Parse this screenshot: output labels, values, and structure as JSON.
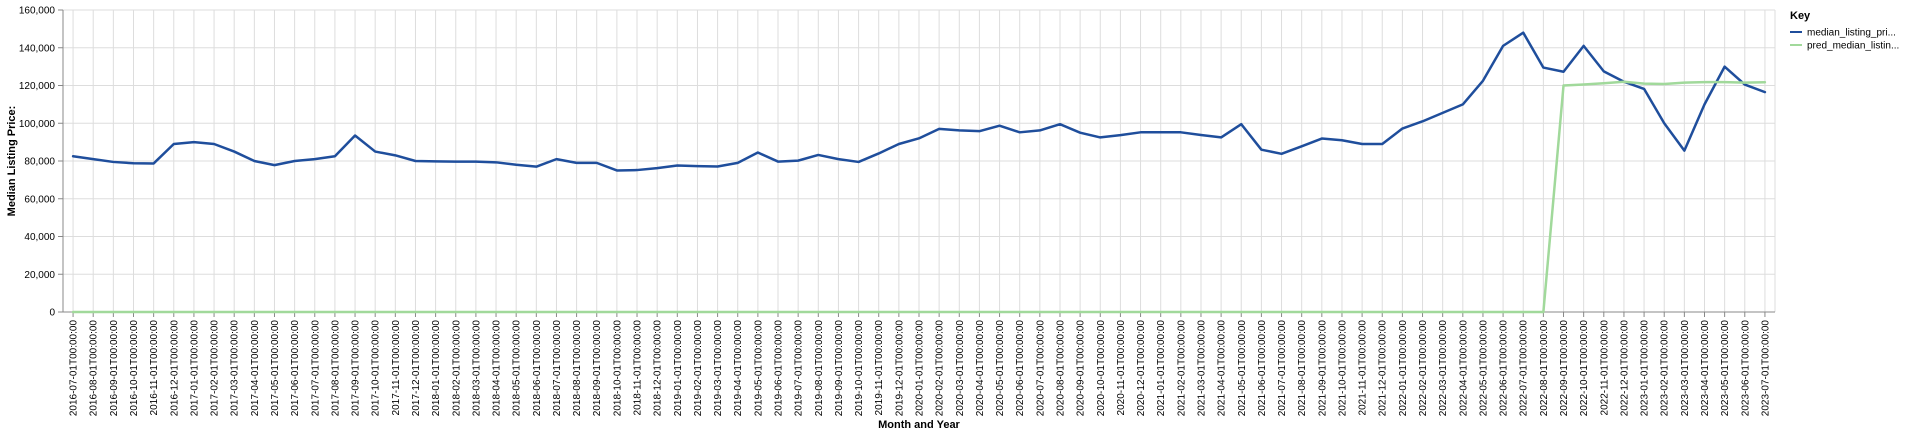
{
  "chart_data": {
    "type": "line",
    "xlabel": "Month and Year",
    "ylabel": "Median Listing Price:",
    "ylim": [
      0,
      160000
    ],
    "yticks": [
      "0",
      "20,000",
      "40,000",
      "60,000",
      "80,000",
      "100,000",
      "120,000",
      "140,000",
      "160,000"
    ],
    "grid": true,
    "legend": {
      "title": "Key",
      "placement": "top-right"
    },
    "categories": [
      "2016-07-01T00:00:00",
      "2016-08-01T00:00:00",
      "2016-09-01T00:00:00",
      "2016-10-01T00:00:00",
      "2016-11-01T00:00:00",
      "2016-12-01T00:00:00",
      "2017-01-01T00:00:00",
      "2017-02-01T00:00:00",
      "2017-03-01T00:00:00",
      "2017-04-01T00:00:00",
      "2017-05-01T00:00:00",
      "2017-06-01T00:00:00",
      "2017-07-01T00:00:00",
      "2017-08-01T00:00:00",
      "2017-09-01T00:00:00",
      "2017-10-01T00:00:00",
      "2017-11-01T00:00:00",
      "2017-12-01T00:00:00",
      "2018-01-01T00:00:00",
      "2018-02-01T00:00:00",
      "2018-03-01T00:00:00",
      "2018-04-01T00:00:00",
      "2018-05-01T00:00:00",
      "2018-06-01T00:00:00",
      "2018-07-01T00:00:00",
      "2018-08-01T00:00:00",
      "2018-09-01T00:00:00",
      "2018-10-01T00:00:00",
      "2018-11-01T00:00:00",
      "2018-12-01T00:00:00",
      "2019-01-01T00:00:00",
      "2019-02-01T00:00:00",
      "2019-03-01T00:00:00",
      "2019-04-01T00:00:00",
      "2019-05-01T00:00:00",
      "2019-06-01T00:00:00",
      "2019-07-01T00:00:00",
      "2019-08-01T00:00:00",
      "2019-09-01T00:00:00",
      "2019-10-01T00:00:00",
      "2019-11-01T00:00:00",
      "2019-12-01T00:00:00",
      "2020-01-01T00:00:00",
      "2020-02-01T00:00:00",
      "2020-03-01T00:00:00",
      "2020-04-01T00:00:00",
      "2020-05-01T00:00:00",
      "2020-06-01T00:00:00",
      "2020-07-01T00:00:00",
      "2020-08-01T00:00:00",
      "2020-09-01T00:00:00",
      "2020-10-01T00:00:00",
      "2020-11-01T00:00:00",
      "2020-12-01T00:00:00",
      "2021-01-01T00:00:00",
      "2021-02-01T00:00:00",
      "2021-03-01T00:00:00",
      "2021-04-01T00:00:00",
      "2021-05-01T00:00:00",
      "2021-06-01T00:00:00",
      "2021-07-01T00:00:00",
      "2021-08-01T00:00:00",
      "2021-09-01T00:00:00",
      "2021-10-01T00:00:00",
      "2021-11-01T00:00:00",
      "2021-12-01T00:00:00",
      "2022-01-01T00:00:00",
      "2022-02-01T00:00:00",
      "2022-03-01T00:00:00",
      "2022-04-01T00:00:00",
      "2022-05-01T00:00:00",
      "2022-06-01T00:00:00",
      "2022-07-01T00:00:00",
      "2022-08-01T00:00:00",
      "2022-09-01T00:00:00",
      "2022-10-01T00:00:00",
      "2022-11-01T00:00:00",
      "2022-12-01T00:00:00",
      "2023-01-01T00:00:00",
      "2023-02-01T00:00:00",
      "2023-03-01T00:00:00",
      "2023-04-01T00:00:00",
      "2023-05-01T00:00:00",
      "2023-06-01T00:00:00",
      "2023-07-01T00:00:00"
    ],
    "series": [
      {
        "name": "median_listing_pri...",
        "color": "#1f4e9c",
        "values": [
          82500,
          81000,
          79500,
          78800,
          78700,
          89000,
          90000,
          89000,
          85000,
          80000,
          77800,
          80000,
          81000,
          82500,
          93500,
          85000,
          83000,
          80000,
          79800,
          79700,
          79700,
          79300,
          78000,
          77000,
          81000,
          79000,
          79000,
          75000,
          75200,
          76200,
          77600,
          77300,
          77100,
          79000,
          84500,
          79700,
          80200,
          83200,
          81000,
          79500,
          84000,
          89000,
          92000,
          97000,
          96200,
          95800,
          98700,
          95200,
          96200,
          99500,
          95000,
          92500,
          93700,
          95200,
          95200,
          95200,
          93800,
          92500,
          99500,
          86000,
          83800,
          87800,
          91900,
          91000,
          89000,
          89000,
          97200,
          101000,
          105500,
          110000,
          122500,
          141000,
          148000,
          129500,
          127300,
          141000,
          127500,
          122000,
          118200,
          100000,
          85500,
          110000,
          130000,
          120500,
          116500
        ]
      },
      {
        "name": "pred_median_listin...",
        "color": "#a1d99b",
        "values": [
          0,
          0,
          0,
          0,
          0,
          0,
          0,
          0,
          0,
          0,
          0,
          0,
          0,
          0,
          0,
          0,
          0,
          0,
          0,
          0,
          0,
          0,
          0,
          0,
          0,
          0,
          0,
          0,
          0,
          0,
          0,
          0,
          0,
          0,
          0,
          0,
          0,
          0,
          0,
          0,
          0,
          0,
          0,
          0,
          0,
          0,
          0,
          0,
          0,
          0,
          0,
          0,
          0,
          0,
          0,
          0,
          0,
          0,
          0,
          0,
          0,
          0,
          0,
          0,
          0,
          0,
          0,
          0,
          0,
          0,
          0,
          0,
          0,
          0,
          120000,
          120500,
          121200,
          122000,
          121000,
          120800,
          121500,
          121800,
          121800,
          121500,
          121700
        ]
      }
    ]
  }
}
